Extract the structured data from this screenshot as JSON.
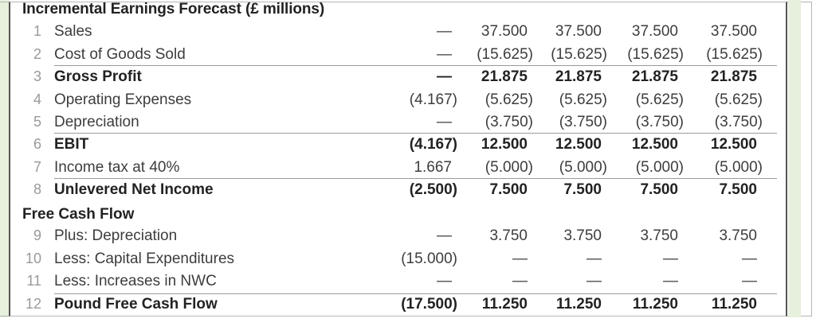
{
  "title": "Incremental Earnings Forecast (£ millions)",
  "section_free_cash_flow": "Free Cash Flow",
  "rows": [
    {
      "num": "1",
      "label": "Sales",
      "bold": false,
      "values": [
        "—",
        "37.500",
        "37.500",
        "37.500",
        "37.500"
      ]
    },
    {
      "num": "2",
      "label": "Cost of Goods Sold",
      "bold": false,
      "values": [
        "—",
        "(15.625)",
        "(15.625)",
        "(15.625)",
        "(15.625)"
      ]
    },
    {
      "num": "3",
      "label": "Gross Profit",
      "bold": true,
      "values": [
        "—",
        "21.875",
        "21.875",
        "21.875",
        "21.875"
      ]
    },
    {
      "num": "4",
      "label": "Operating Expenses",
      "bold": false,
      "values": [
        "(4.167)",
        "(5.625)",
        "(5.625)",
        "(5.625)",
        "(5.625)"
      ]
    },
    {
      "num": "5",
      "label": "Depreciation",
      "bold": false,
      "values": [
        "—",
        "(3.750)",
        "(3.750)",
        "(3.750)",
        "(3.750)"
      ]
    },
    {
      "num": "6",
      "label": "EBIT",
      "bold": true,
      "values": [
        "(4.167)",
        "12.500",
        "12.500",
        "12.500",
        "12.500"
      ]
    },
    {
      "num": "7",
      "label": "Income tax at 40%",
      "bold": false,
      "values": [
        "1.667",
        "(5.000)",
        "(5.000)",
        "(5.000)",
        "(5.000)"
      ]
    },
    {
      "num": "8",
      "label": "Unlevered Net Income",
      "bold": true,
      "values": [
        "(2.500)",
        "7.500",
        "7.500",
        "7.500",
        "7.500"
      ]
    },
    {
      "num": "9",
      "label": "Plus: Depreciation",
      "bold": false,
      "values": [
        "—",
        "3.750",
        "3.750",
        "3.750",
        "3.750"
      ]
    },
    {
      "num": "10",
      "label": "Less: Capital Expenditures",
      "bold": false,
      "values": [
        "(15.000)",
        "—",
        "—",
        "—",
        "—"
      ]
    },
    {
      "num": "11",
      "label": "Less: Increases in NWC",
      "bold": false,
      "values": [
        "—",
        "—",
        "—",
        "—",
        "—"
      ]
    },
    {
      "num": "12",
      "label": "Pound Free Cash Flow",
      "bold": true,
      "values": [
        "(17.500)",
        "11.250",
        "11.250",
        "11.250",
        "11.250"
      ]
    }
  ],
  "colors": {
    "side_strip": "#e6f0dc",
    "frame_border": "#555555",
    "rule": "#9a9a9a",
    "text": "#3d3d3d",
    "bold_text": "#222222",
    "row_number": "#9a9a9a"
  }
}
